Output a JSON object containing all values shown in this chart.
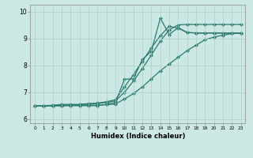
{
  "xlabel": "Humidex (Indice chaleur)",
  "bg_color": "#cce8e4",
  "grid_color": "#aad0c8",
  "line_color": "#2d7a6e",
  "xlim": [
    -0.5,
    23.5
  ],
  "ylim": [
    5.85,
    10.25
  ],
  "yticks": [
    6,
    7,
    8,
    9,
    10
  ],
  "xticks": [
    0,
    1,
    2,
    3,
    4,
    5,
    6,
    7,
    8,
    9,
    10,
    11,
    12,
    13,
    14,
    15,
    16,
    17,
    18,
    19,
    20,
    21,
    22,
    23
  ],
  "line1_x": [
    0,
    1,
    2,
    3,
    4,
    5,
    6,
    7,
    8,
    9,
    10,
    11,
    12,
    13,
    14,
    15,
    16,
    17,
    18,
    19,
    20,
    21,
    22,
    23
  ],
  "line1_y": [
    6.5,
    6.5,
    6.5,
    6.52,
    6.52,
    6.52,
    6.52,
    6.52,
    6.54,
    6.56,
    6.75,
    6.95,
    7.2,
    7.5,
    7.8,
    8.05,
    8.3,
    8.55,
    8.75,
    8.95,
    9.05,
    9.12,
    9.18,
    9.2
  ],
  "line2_x": [
    0,
    1,
    2,
    3,
    4,
    5,
    6,
    7,
    8,
    9,
    10,
    11,
    12,
    13,
    14,
    15,
    16,
    17,
    18,
    19,
    20,
    21,
    22,
    23
  ],
  "line2_y": [
    6.5,
    6.5,
    6.52,
    6.55,
    6.55,
    6.55,
    6.58,
    6.6,
    6.65,
    6.72,
    7.2,
    7.65,
    8.15,
    8.65,
    9.1,
    9.45,
    9.38,
    9.22,
    9.2,
    9.2,
    9.2,
    9.2,
    9.2,
    9.2
  ],
  "line3_x": [
    0,
    1,
    2,
    3,
    4,
    5,
    6,
    7,
    8,
    9,
    10,
    11,
    12,
    13,
    14,
    15,
    16,
    17,
    18,
    19,
    20,
    21,
    22,
    23
  ],
  "line3_y": [
    6.5,
    6.5,
    6.5,
    6.5,
    6.5,
    6.5,
    6.5,
    6.5,
    6.55,
    6.62,
    7.48,
    7.5,
    8.22,
    8.52,
    9.75,
    9.15,
    9.4,
    9.22,
    9.2,
    9.2,
    9.2,
    9.2,
    9.2,
    9.2
  ],
  "line4_x": [
    0,
    1,
    2,
    3,
    4,
    5,
    6,
    7,
    8,
    9,
    10,
    11,
    12,
    13,
    14,
    15,
    16,
    17,
    18,
    19,
    20,
    21,
    22,
    23
  ],
  "line4_y": [
    6.5,
    6.5,
    6.5,
    6.5,
    6.52,
    6.54,
    6.56,
    6.58,
    6.62,
    6.68,
    7.0,
    7.42,
    7.88,
    8.38,
    8.9,
    9.32,
    9.5,
    9.52,
    9.52,
    9.52,
    9.52,
    9.52,
    9.52,
    9.52
  ],
  "marker": "D",
  "markersize": 2.2,
  "linewidth": 0.9
}
